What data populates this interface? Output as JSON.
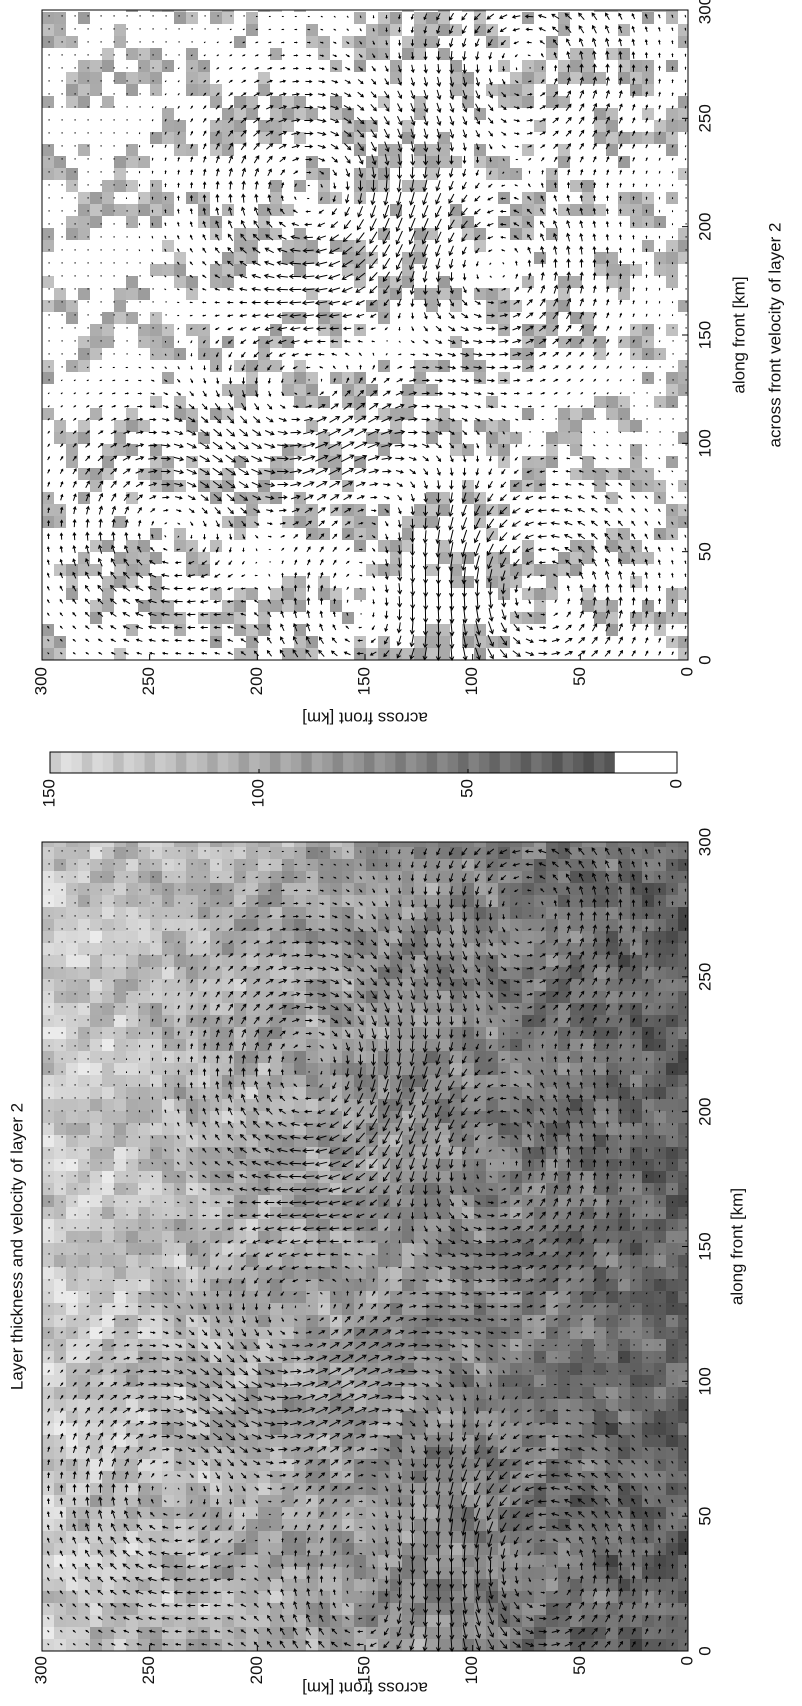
{
  "chart_data": [
    {
      "type": "quiver",
      "title": "Layer thickness and velocity of layer 2",
      "x_label": "along front [km]",
      "y_label": "across front [km]",
      "xlim": [
        0,
        300
      ],
      "ylim": [
        0,
        300
      ],
      "xticks": [
        0,
        50,
        100,
        150,
        200,
        250,
        300
      ],
      "yticks": [
        0,
        50,
        100,
        150,
        200,
        250,
        300
      ]
    },
    {
      "type": "colorbar",
      "ylim": [
        0,
        150
      ],
      "yticks": [
        0,
        50,
        100,
        150
      ]
    },
    {
      "type": "quiver",
      "title": "across front velocity of layer 2",
      "x_label": "along front [km]",
      "y_label": "across front [km]",
      "xlim": [
        0,
        300
      ],
      "ylim": [
        0,
        300
      ],
      "xticks": [
        0,
        50,
        100,
        150,
        200,
        250,
        300
      ],
      "yticks": [
        0,
        50,
        100,
        150,
        200,
        250,
        300
      ]
    }
  ]
}
